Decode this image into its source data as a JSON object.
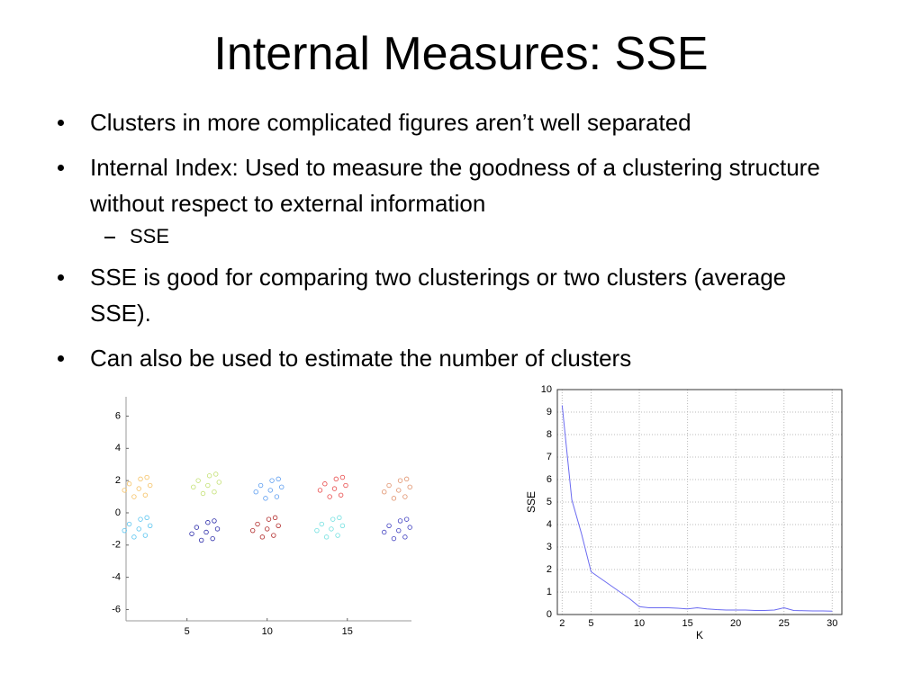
{
  "title": "Internal Measures: SSE",
  "items": [
    {
      "text": "Clusters in more complicated figures aren’t well separated"
    },
    {
      "text": "Internal Index:  Used to measure the goodness of a clustering structure without respect to external information",
      "sub": [
        "SSE"
      ]
    },
    {
      "text": "SSE is good for comparing two clusterings or two clusters (average SSE)."
    },
    {
      "text": "Can also be used to estimate the number of clusters"
    }
  ],
  "chart_data": [
    {
      "type": "scatter",
      "xlim": [
        1.2,
        19
      ],
      "ylim": [
        -6.7,
        7.2
      ],
      "xticks": [
        5,
        10,
        15
      ],
      "yticks": [
        6,
        4,
        2,
        0,
        -2,
        -4,
        -6
      ],
      "series": [
        {
          "color": "#f5c060",
          "x": [
            1.4,
            2.4,
            2.1,
            1.7,
            2.7,
            2.0,
            1.1,
            2.5
          ],
          "y": [
            1.8,
            1.1,
            2.1,
            1.0,
            1.7,
            1.5,
            1.4,
            2.2
          ]
        },
        {
          "color": "#c2e070",
          "x": [
            5.7,
            6.7,
            6.4,
            6.0,
            7.0,
            6.3,
            5.4,
            6.8
          ],
          "y": [
            2.0,
            1.3,
            2.3,
            1.2,
            1.9,
            1.7,
            1.6,
            2.4
          ]
        },
        {
          "color": "#5a9cf0",
          "x": [
            9.6,
            10.6,
            10.3,
            9.9,
            10.9,
            10.2,
            9.3,
            10.7
          ],
          "y": [
            1.7,
            1.0,
            2.0,
            0.9,
            1.6,
            1.4,
            1.3,
            2.1
          ]
        },
        {
          "color": "#e84848",
          "x": [
            13.6,
            14.6,
            14.3,
            13.9,
            14.9,
            14.2,
            13.3,
            14.7
          ],
          "y": [
            1.8,
            1.1,
            2.1,
            1.0,
            1.7,
            1.5,
            1.4,
            2.2
          ]
        },
        {
          "color": "#e0906a",
          "x": [
            17.6,
            18.6,
            18.3,
            17.9,
            18.9,
            18.2,
            17.3,
            18.7
          ],
          "y": [
            1.7,
            1.0,
            2.0,
            0.9,
            1.6,
            1.4,
            1.3,
            2.1
          ]
        },
        {
          "color": "#58c4f0",
          "x": [
            1.4,
            2.4,
            2.1,
            1.7,
            2.7,
            2.0,
            1.1,
            2.5
          ],
          "y": [
            -0.7,
            -1.4,
            -0.4,
            -1.5,
            -0.8,
            -1.0,
            -1.1,
            -0.3
          ]
        },
        {
          "color": "#2828a8",
          "x": [
            5.6,
            6.6,
            6.3,
            5.9,
            6.9,
            6.2,
            5.3,
            6.7
          ],
          "y": [
            -0.9,
            -1.6,
            -0.6,
            -1.7,
            -1.0,
            -1.2,
            -1.3,
            -0.5
          ]
        },
        {
          "color": "#b02828",
          "x": [
            9.4,
            10.4,
            10.1,
            9.7,
            10.7,
            10.0,
            9.1,
            10.5
          ],
          "y": [
            -0.7,
            -1.4,
            -0.4,
            -1.5,
            -0.8,
            -1.0,
            -1.1,
            -0.3
          ]
        },
        {
          "color": "#70e0e0",
          "x": [
            13.4,
            14.4,
            14.1,
            13.7,
            14.7,
            14.0,
            13.1,
            14.5
          ],
          "y": [
            -0.7,
            -1.4,
            -0.4,
            -1.5,
            -0.8,
            -1.0,
            -1.1,
            -0.3
          ]
        },
        {
          "color": "#4040c0",
          "x": [
            17.6,
            18.6,
            18.3,
            17.9,
            18.9,
            18.2,
            17.3,
            18.7
          ],
          "y": [
            -0.8,
            -1.5,
            -0.5,
            -1.6,
            -0.9,
            -1.1,
            -1.2,
            -0.4
          ]
        }
      ]
    },
    {
      "type": "line",
      "x_label": "K",
      "y_label": "SSE",
      "color": "#6a6af0",
      "grid": true,
      "xlim": [
        1.5,
        31
      ],
      "ylim": [
        0,
        10
      ],
      "xticks": [
        2,
        5,
        10,
        15,
        20,
        25,
        30
      ],
      "yticks": [
        0,
        1,
        2,
        3,
        4,
        5,
        6,
        7,
        8,
        9,
        10
      ],
      "x": [
        2,
        3,
        4,
        5,
        6,
        7,
        8,
        9,
        10,
        11,
        12,
        13,
        14,
        15,
        16,
        17,
        18,
        19,
        20,
        21,
        22,
        23,
        24,
        25,
        26,
        27,
        28,
        29,
        30
      ],
      "values": [
        9.3,
        5.1,
        3.6,
        1.9,
        1.6,
        1.3,
        1.0,
        0.7,
        0.35,
        0.3,
        0.3,
        0.3,
        0.28,
        0.25,
        0.3,
        0.25,
        0.22,
        0.2,
        0.2,
        0.2,
        0.18,
        0.18,
        0.2,
        0.3,
        0.18,
        0.17,
        0.16,
        0.16,
        0.15
      ]
    }
  ]
}
